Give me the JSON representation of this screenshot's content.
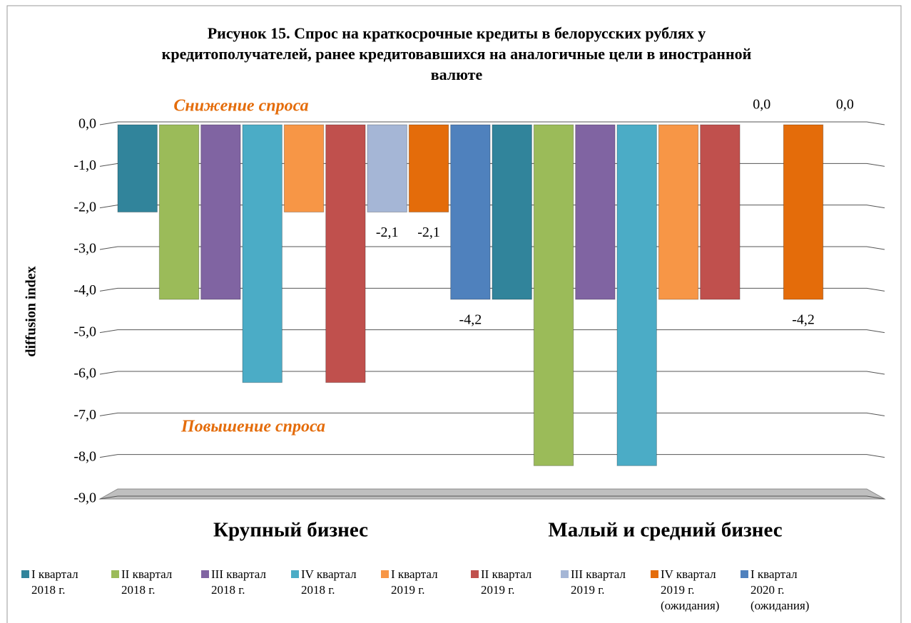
{
  "chart_data": {
    "type": "bar",
    "title": "Рисунок 15. Спрос на краткосрочные кредиты в белорусских рублях у кредитополучателей, ранее кредитовавшихся на аналогичные цели в иностранной валюте",
    "ylabel": "diffusion index",
    "annotations": [
      "Снижение спроса",
      "Повышение спроса"
    ],
    "categories": [
      "Крупный бизнес",
      "Малый и средний бизнес"
    ],
    "series": [
      {
        "name": "I квартал 2018 г.",
        "color": "#31849b",
        "values": [
          -2.1,
          -4.2
        ]
      },
      {
        "name": "II квартал 2018 г.",
        "color": "#9bbb59",
        "values": [
          -4.2,
          -8.2
        ]
      },
      {
        "name": "III квартал 2018 г.",
        "color": "#8064a2",
        "values": [
          -4.2,
          -4.2
        ]
      },
      {
        "name": "IV квартал 2018 г.",
        "color": "#4bacc6",
        "values": [
          -6.2,
          -8.2
        ]
      },
      {
        "name": "I квартал 2019 г.",
        "color": "#f79646",
        "values": [
          -2.1,
          -4.2
        ]
      },
      {
        "name": "II квартал 2019 г.",
        "color": "#c0504d",
        "values": [
          -6.2,
          -4.2
        ]
      },
      {
        "name": "III квартал 2019 г.",
        "color": "#a5b6d6",
        "values": [
          -2.1,
          0.0
        ],
        "value_labels": [
          "-2,1",
          "0,0"
        ]
      },
      {
        "name": "IV квартал 2019 г. (ожидания)",
        "color": "#e46c0a",
        "values": [
          -2.1,
          -4.2
        ],
        "value_labels": [
          "-2,1",
          "-4,2"
        ]
      },
      {
        "name": "I квартал 2020 г. (ожидания)",
        "color": "#4f81bd",
        "values": [
          -4.2,
          0.0
        ],
        "value_labels": [
          "-4,2",
          "0,0"
        ]
      }
    ],
    "ylim": [
      -9,
      0
    ],
    "yticks": [
      {
        "value": 0,
        "label": "0,0"
      },
      {
        "value": -1,
        "label": "-1,0"
      },
      {
        "value": -2,
        "label": "-2,0"
      },
      {
        "value": -3,
        "label": "-3,0"
      },
      {
        "value": -4,
        "label": "-4,0"
      },
      {
        "value": -5,
        "label": "-5,0"
      },
      {
        "value": -6,
        "label": "-6,0"
      },
      {
        "value": -7,
        "label": "-7,0"
      },
      {
        "value": -8,
        "label": "-8,0"
      },
      {
        "value": -9,
        "label": "-9,0"
      }
    ],
    "grid": true
  }
}
